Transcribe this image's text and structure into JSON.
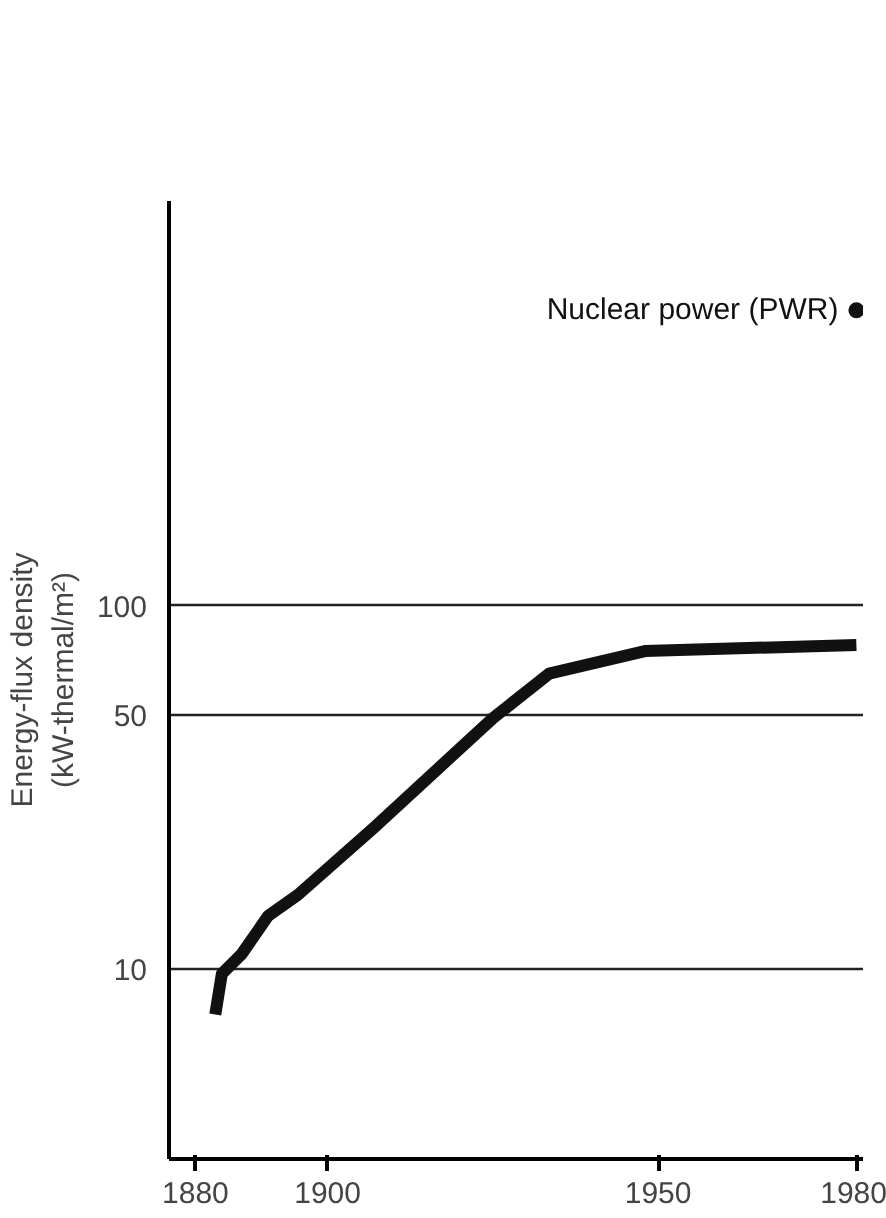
{
  "chart_data": {
    "type": "line",
    "ylabel": "Energy-flux density\n(kW-thermal/m²)",
    "log": "y",
    "grid": "y",
    "legend": false,
    "xlim": [
      1876,
      1981
    ],
    "xticks": [
      1880,
      1900,
      1950,
      1980
    ],
    "ylim": [
      3,
      1300
    ],
    "yticks": [
      10,
      50,
      100
    ],
    "series": [
      {
        "color": "#111111",
        "x": [
          1883,
          1884,
          1887,
          1891,
          1895.5,
          1907,
          1925,
          1933.5,
          1948,
          1980
        ],
        "values": [
          7.5,
          9.7,
          11,
          14,
          16,
          24.5,
          49,
          65,
          75,
          78
        ]
      },
      {
        "type": "scatter",
        "name": "Nuclear power (PWR)",
        "color": "#111111",
        "marker": "circle",
        "x": [
          1980
        ],
        "values": [
          650
        ]
      }
    ]
  }
}
